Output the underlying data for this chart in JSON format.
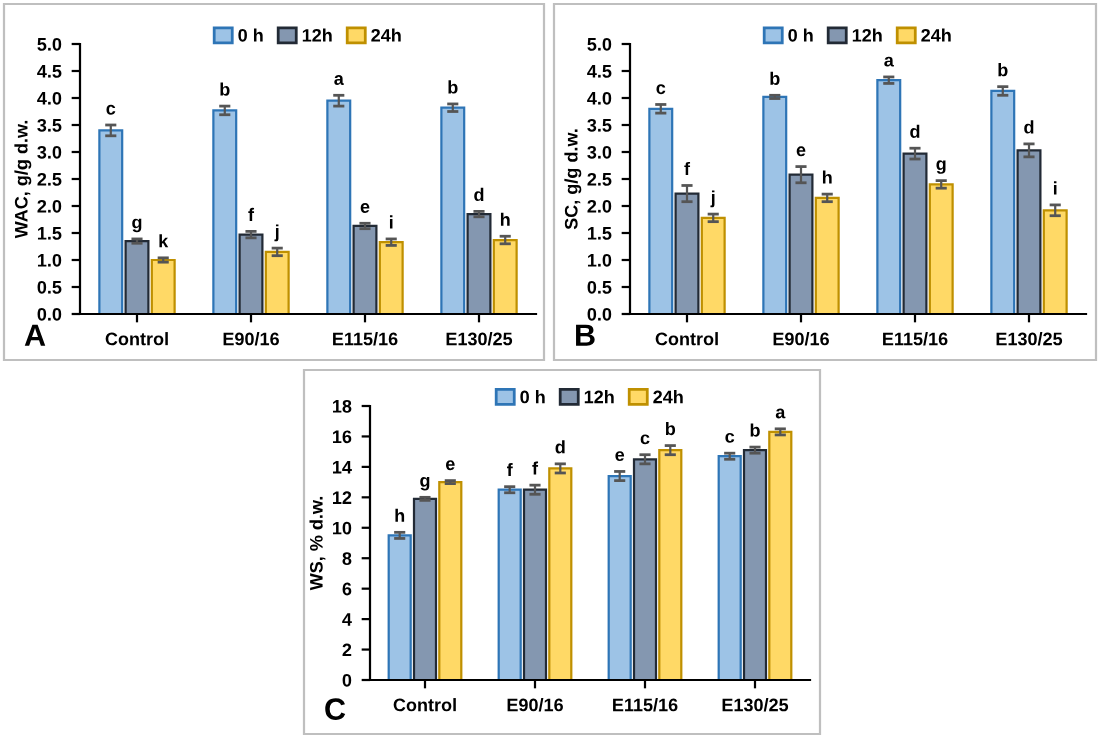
{
  "chart_data": [
    {
      "type": "bar",
      "ylabel": "WAC, g/g d.w.",
      "categories": [
        "Control",
        "E90/16",
        "E115/16",
        "E130/25"
      ],
      "ylim": [
        0,
        5
      ],
      "yticks": [
        {
          "value": 0,
          "label": "0.0"
        },
        {
          "value": 0.5,
          "label": "0.5"
        },
        {
          "value": 1,
          "label": "1.0"
        },
        {
          "value": 1.5,
          "label": "1.5"
        },
        {
          "value": 2,
          "label": "2.0"
        },
        {
          "value": 2.5,
          "label": "2.5"
        },
        {
          "value": 3,
          "label": "3.0"
        },
        {
          "value": 3.5,
          "label": "3.5"
        },
        {
          "value": 4,
          "label": "4.0"
        },
        {
          "value": 4.5,
          "label": "4.5"
        },
        {
          "value": 5,
          "label": "5.0"
        }
      ],
      "grid": false,
      "legend": "top",
      "annotations": [
        "A"
      ],
      "series": [
        {
          "name": "0 h",
          "color": "#9dc3e6",
          "values": [
            3.4,
            3.77,
            3.95,
            3.82
          ],
          "errors": [
            0.1,
            0.08,
            0.1,
            0.07
          ],
          "value_labels": [
            "c",
            "b",
            "a",
            "b"
          ]
        },
        {
          "name": "12h",
          "color": "#8497b0",
          "values": [
            1.35,
            1.47,
            1.63,
            1.85
          ],
          "errors": [
            0.04,
            0.06,
            0.05,
            0.05
          ],
          "value_labels": [
            "g",
            "f",
            "e",
            "d"
          ]
        },
        {
          "name": "24h",
          "color": "#ffd966",
          "values": [
            1.0,
            1.15,
            1.33,
            1.37
          ],
          "errors": [
            0.04,
            0.07,
            0.06,
            0.07
          ],
          "value_labels": [
            "k",
            "j",
            "i",
            "h"
          ]
        }
      ]
    },
    {
      "type": "bar",
      "ylabel": "SC, g/g d.w.",
      "categories": [
        "Control",
        "E90/16",
        "E115/16",
        "E130/25"
      ],
      "ylim": [
        0,
        5
      ],
      "yticks": [
        {
          "value": 0,
          "label": "0.0"
        },
        {
          "value": 0.5,
          "label": "0.5"
        },
        {
          "value": 1,
          "label": "1.0"
        },
        {
          "value": 1.5,
          "label": "1.5"
        },
        {
          "value": 2,
          "label": "2.0"
        },
        {
          "value": 2.5,
          "label": "2.5"
        },
        {
          "value": 3,
          "label": "3.0"
        },
        {
          "value": 3.5,
          "label": "3.5"
        },
        {
          "value": 4,
          "label": "4.0"
        },
        {
          "value": 4.5,
          "label": "4.5"
        },
        {
          "value": 5,
          "label": "5.0"
        }
      ],
      "grid": false,
      "legend": "top",
      "annotations": [
        "B"
      ],
      "series": [
        {
          "name": "0 h",
          "color": "#9dc3e6",
          "values": [
            3.8,
            4.02,
            4.33,
            4.13
          ],
          "errors": [
            0.08,
            0.03,
            0.06,
            0.08
          ],
          "value_labels": [
            "c",
            "b",
            "a",
            "b"
          ]
        },
        {
          "name": "12h",
          "color": "#8497b0",
          "values": [
            2.23,
            2.58,
            2.97,
            3.03
          ],
          "errors": [
            0.15,
            0.15,
            0.1,
            0.12
          ],
          "value_labels": [
            "f",
            "e",
            "d",
            "d"
          ]
        },
        {
          "name": "24h",
          "color": "#ffd966",
          "values": [
            1.78,
            2.15,
            2.4,
            1.92
          ],
          "errors": [
            0.07,
            0.07,
            0.07,
            0.1
          ],
          "value_labels": [
            "j",
            "h",
            "g",
            "i"
          ]
        }
      ]
    },
    {
      "type": "bar",
      "ylabel": "WS, % d.w.",
      "categories": [
        "Control",
        "E90/16",
        "E115/16",
        "E130/25"
      ],
      "ylim": [
        0,
        18
      ],
      "yticks": [
        0,
        2,
        4,
        6,
        8,
        10,
        12,
        14,
        16,
        18
      ],
      "grid": false,
      "legend": "top",
      "annotations": [
        "C"
      ],
      "series": [
        {
          "name": "0 h",
          "color": "#9dc3e6",
          "values": [
            9.5,
            12.5,
            13.4,
            14.7
          ],
          "errors": [
            0.2,
            0.2,
            0.3,
            0.2
          ],
          "value_labels": [
            "h",
            "f",
            "e",
            "c"
          ]
        },
        {
          "name": "12h",
          "color": "#8497b0",
          "values": [
            11.9,
            12.5,
            14.5,
            15.1
          ],
          "errors": [
            0.1,
            0.3,
            0.3,
            0.2
          ],
          "value_labels": [
            "g",
            "f",
            "c",
            "b"
          ]
        },
        {
          "name": "24h",
          "color": "#ffd966",
          "values": [
            13.0,
            13.9,
            15.1,
            16.3
          ],
          "errors": [
            0.1,
            0.3,
            0.3,
            0.2
          ],
          "value_labels": [
            "e",
            "d",
            "b",
            "a"
          ]
        }
      ]
    }
  ]
}
